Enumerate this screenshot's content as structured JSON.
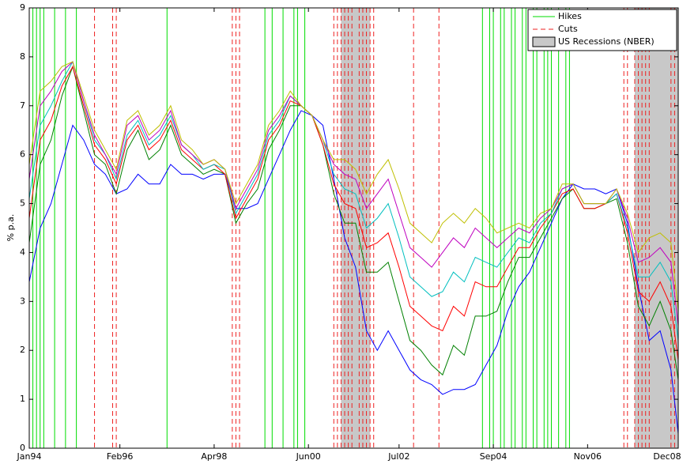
{
  "chart_data": {
    "type": "line",
    "ylabel": "% p.a.",
    "xlim": [
      "1994-01",
      "2008-12"
    ],
    "xticks": [
      {
        "value": "1994-01",
        "label": "Jan94"
      },
      {
        "value": "1996-02",
        "label": "Feb96"
      },
      {
        "value": "1998-04",
        "label": "Apr98"
      },
      {
        "value": "2000-06",
        "label": "Jun00"
      },
      {
        "value": "2002-07",
        "label": "Jul02"
      },
      {
        "value": "2004-09",
        "label": "Sep04"
      },
      {
        "value": "2006-11",
        "label": "Nov06"
      },
      {
        "value": "2008-12",
        "label": "Dec08"
      }
    ],
    "ylim": [
      0,
      9
    ],
    "yticks": [
      0,
      1,
      2,
      3,
      4,
      5,
      6,
      7,
      8,
      9
    ],
    "legend": "upper right",
    "x": [
      "1994-01",
      "1994-04",
      "1994-07",
      "1994-10",
      "1995-01",
      "1995-04",
      "1995-07",
      "1995-10",
      "1996-01",
      "1996-04",
      "1996-07",
      "1996-10",
      "1997-01",
      "1997-04",
      "1997-07",
      "1997-10",
      "1998-01",
      "1998-04",
      "1998-07",
      "1998-10",
      "1999-01",
      "1999-04",
      "1999-07",
      "1999-10",
      "2000-01",
      "2000-04",
      "2000-07",
      "2000-10",
      "2001-01",
      "2001-04",
      "2001-07",
      "2001-10",
      "2002-01",
      "2002-04",
      "2002-07",
      "2002-10",
      "2003-01",
      "2003-04",
      "2003-07",
      "2003-10",
      "2004-01",
      "2004-04",
      "2004-07",
      "2004-10",
      "2005-01",
      "2005-04",
      "2005-07",
      "2005-10",
      "2006-01",
      "2006-04",
      "2006-07",
      "2006-10",
      "2007-01",
      "2007-04",
      "2007-07",
      "2007-10",
      "2008-01",
      "2008-04",
      "2008-07",
      "2008-10",
      "2008-12"
    ],
    "series": [
      {
        "color": "#0000ff",
        "values": [
          3.4,
          4.5,
          5.0,
          5.8,
          6.6,
          6.3,
          5.8,
          5.6,
          5.2,
          5.3,
          5.6,
          5.4,
          5.4,
          5.8,
          5.6,
          5.6,
          5.5,
          5.6,
          5.6,
          4.9,
          4.9,
          5.0,
          5.5,
          6.0,
          6.5,
          6.9,
          6.8,
          6.6,
          5.5,
          4.3,
          3.7,
          2.4,
          2.0,
          2.4,
          2.0,
          1.6,
          1.4,
          1.3,
          1.1,
          1.2,
          1.2,
          1.3,
          1.7,
          2.1,
          2.8,
          3.3,
          3.6,
          4.1,
          4.6,
          5.1,
          5.4,
          5.3,
          5.3,
          5.2,
          5.3,
          4.6,
          3.3,
          2.2,
          2.4,
          1.6,
          0.3
        ]
      },
      {
        "color": "#008000",
        "values": [
          4.2,
          5.8,
          6.3,
          7.2,
          7.8,
          6.9,
          6.0,
          5.8,
          5.2,
          6.1,
          6.5,
          5.9,
          6.1,
          6.6,
          6.0,
          5.8,
          5.6,
          5.7,
          5.6,
          4.6,
          5.0,
          5.3,
          6.1,
          6.5,
          7.0,
          7.0,
          6.8,
          6.2,
          5.2,
          4.6,
          4.6,
          3.6,
          3.6,
          3.8,
          3.0,
          2.2,
          2.0,
          1.7,
          1.5,
          2.1,
          1.9,
          2.7,
          2.7,
          2.8,
          3.4,
          3.9,
          3.9,
          4.3,
          4.7,
          5.1,
          5.3,
          4.9,
          4.9,
          5.0,
          5.1,
          4.2,
          2.9,
          2.5,
          3.0,
          2.4,
          1.4
        ]
      },
      {
        "color": "#ff0000",
        "values": [
          4.7,
          6.3,
          6.7,
          7.4,
          7.8,
          7.0,
          6.2,
          5.9,
          5.4,
          6.3,
          6.6,
          6.1,
          6.3,
          6.7,
          6.1,
          5.9,
          5.7,
          5.8,
          5.6,
          4.7,
          5.1,
          5.5,
          6.3,
          6.6,
          7.1,
          7.0,
          6.8,
          6.2,
          5.4,
          5.0,
          4.9,
          4.1,
          4.2,
          4.4,
          3.7,
          2.9,
          2.7,
          2.5,
          2.4,
          2.9,
          2.7,
          3.4,
          3.3,
          3.3,
          3.7,
          4.1,
          4.1,
          4.5,
          4.8,
          5.2,
          5.3,
          4.9,
          4.9,
          5.0,
          5.2,
          4.4,
          3.2,
          3.0,
          3.4,
          2.9,
          1.8
        ]
      },
      {
        "color": "#00bfbf",
        "values": [
          5.1,
          6.6,
          7.0,
          7.5,
          7.9,
          7.1,
          6.3,
          6.0,
          5.5,
          6.4,
          6.7,
          6.2,
          6.4,
          6.8,
          6.2,
          6.0,
          5.7,
          5.8,
          5.7,
          4.8,
          5.2,
          5.6,
          6.4,
          6.7,
          7.2,
          7.0,
          6.8,
          6.3,
          5.6,
          5.3,
          5.2,
          4.5,
          4.7,
          5.0,
          4.3,
          3.5,
          3.3,
          3.1,
          3.2,
          3.6,
          3.4,
          3.9,
          3.8,
          3.7,
          4.0,
          4.3,
          4.2,
          4.6,
          4.8,
          5.3,
          5.4,
          5.0,
          5.0,
          5.0,
          5.2,
          4.5,
          3.5,
          3.5,
          3.8,
          3.4,
          2.2
        ]
      },
      {
        "color": "#bf00bf",
        "values": [
          5.5,
          7.0,
          7.3,
          7.7,
          7.9,
          7.1,
          6.4,
          6.0,
          5.6,
          6.6,
          6.8,
          6.3,
          6.5,
          6.9,
          6.2,
          6.0,
          5.8,
          5.9,
          5.7,
          4.9,
          5.3,
          5.7,
          6.5,
          6.8,
          7.2,
          7.0,
          6.8,
          6.3,
          5.8,
          5.6,
          5.5,
          4.9,
          5.2,
          5.5,
          4.8,
          4.1,
          3.9,
          3.7,
          4.0,
          4.3,
          4.1,
          4.5,
          4.3,
          4.1,
          4.3,
          4.5,
          4.4,
          4.7,
          4.9,
          5.3,
          5.4,
          5.0,
          5.0,
          5.0,
          5.3,
          4.7,
          3.8,
          3.9,
          4.1,
          3.8,
          2.5
        ]
      },
      {
        "color": "#bfbf00",
        "values": [
          5.8,
          7.3,
          7.5,
          7.8,
          7.9,
          7.2,
          6.5,
          6.1,
          5.7,
          6.7,
          6.9,
          6.4,
          6.6,
          7.0,
          6.3,
          6.1,
          5.8,
          5.9,
          5.7,
          5.0,
          5.4,
          5.8,
          6.6,
          6.9,
          7.3,
          7.0,
          6.8,
          6.3,
          5.9,
          5.9,
          5.7,
          5.2,
          5.6,
          5.9,
          5.3,
          4.6,
          4.4,
          4.2,
          4.6,
          4.8,
          4.6,
          4.9,
          4.7,
          4.4,
          4.5,
          4.6,
          4.5,
          4.8,
          4.9,
          5.4,
          5.4,
          5.0,
          5.0,
          5.0,
          5.3,
          4.8,
          4.0,
          4.3,
          4.4,
          4.2,
          2.8
        ]
      }
    ],
    "hikes": {
      "name": "Hikes",
      "color": "#00dd00",
      "x": [
        "1994-02",
        "1994-03",
        "1994-04",
        "1994-05",
        "1994-08",
        "1994-11",
        "1995-02",
        "1997-03",
        "1999-06",
        "1999-08",
        "1999-11",
        "2000-02",
        "2000-03",
        "2000-05",
        "2004-06",
        "2004-08",
        "2004-09",
        "2004-11",
        "2004-12",
        "2005-02",
        "2005-03",
        "2005-05",
        "2005-06",
        "2005-08",
        "2005-09",
        "2005-11",
        "2005-12",
        "2006-01",
        "2006-03",
        "2006-05",
        "2006-06"
      ]
    },
    "cuts": {
      "name": "Cuts",
      "color": "#ee2222",
      "x": [
        "1995-07",
        "1995-12",
        "1996-01",
        "1998-09",
        "1998-10",
        "1998-11",
        "2001-01",
        "2001-02",
        "2001-03",
        "2001-04",
        "2001-05",
        "2001-06",
        "2001-08",
        "2001-09",
        "2001-10",
        "2001-11",
        "2001-12",
        "2002-11",
        "2003-06",
        "2007-09",
        "2007-10",
        "2007-12",
        "2008-01",
        "2008-02",
        "2008-03",
        "2008-04",
        "2008-10",
        "2008-11"
      ]
    },
    "recessions": {
      "name": "US Recessions (NBER)",
      "color": "#c8c8c8",
      "spans": [
        [
          "2001-03",
          "2001-11"
        ],
        [
          "2007-12",
          "2008-12"
        ]
      ]
    }
  }
}
